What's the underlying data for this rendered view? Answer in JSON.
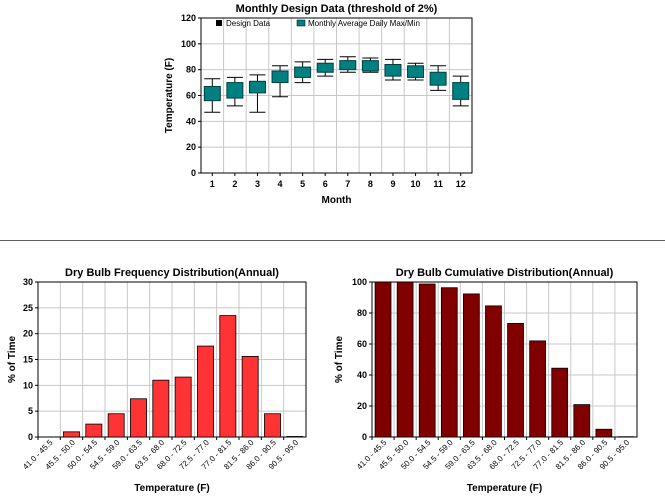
{
  "chart_data": [
    {
      "type": "box",
      "title": "Monthly Design Data (threshold of 2%)",
      "xlabel": "Month",
      "ylabel": "Temperature (F)",
      "ylim": [
        0,
        120
      ],
      "yticks": [
        0,
        20,
        40,
        60,
        80,
        100,
        120
      ],
      "categories": [
        "1",
        "2",
        "3",
        "4",
        "5",
        "6",
        "7",
        "8",
        "9",
        "10",
        "11",
        "12"
      ],
      "legend": [
        {
          "label": "Design Data",
          "color": "#000000"
        },
        {
          "label": "Monthly Average Daily Max/Min",
          "color": "#008080"
        }
      ],
      "design_data": [
        {
          "low": 47,
          "high": 73
        },
        {
          "low": 52,
          "high": 74
        },
        {
          "low": 47,
          "high": 76
        },
        {
          "low": 59,
          "high": 83
        },
        {
          "low": 70,
          "high": 86
        },
        {
          "low": 75,
          "high": 88
        },
        {
          "low": 78,
          "high": 90
        },
        {
          "low": 78,
          "high": 89
        },
        {
          "low": 72,
          "high": 88
        },
        {
          "low": 72,
          "high": 85
        },
        {
          "low": 64,
          "high": 83
        },
        {
          "low": 52,
          "high": 75
        }
      ],
      "daily_max_min": [
        {
          "min": 56,
          "max": 67
        },
        {
          "min": 58,
          "max": 70
        },
        {
          "min": 62,
          "max": 71
        },
        {
          "min": 70,
          "max": 79
        },
        {
          "min": 74,
          "max": 82
        },
        {
          "min": 78,
          "max": 85
        },
        {
          "min": 80,
          "max": 87
        },
        {
          "min": 79,
          "max": 87
        },
        {
          "min": 75,
          "max": 84
        },
        {
          "min": 74,
          "max": 83
        },
        {
          "min": 68,
          "max": 78
        },
        {
          "min": 57,
          "max": 70
        }
      ],
      "color": "#008080"
    },
    {
      "type": "bar",
      "title": "Dry Bulb Frequency Distribution(Annual)",
      "xlabel": "Temperature (F)",
      "ylabel": "% of Time",
      "ylim": [
        0,
        30
      ],
      "yticks": [
        0,
        5,
        10,
        15,
        20,
        25,
        30
      ],
      "categories": [
        "41.0 - 45.5",
        "45.5 - 50.0",
        "50.0 - 54.5",
        "54.5 - 59.0",
        "59.0 - 63.5",
        "63.5 - 68.0",
        "68.0 - 72.5",
        "72.5 - 77.0",
        "77.0 - 81.5",
        "81.5 - 86.0",
        "86.0 - 90.5",
        "90.5 - 95.0"
      ],
      "values": [
        0,
        1.0,
        2.5,
        4.5,
        7.4,
        11.0,
        11.6,
        17.6,
        23.5,
        15.6,
        4.5,
        0.1
      ],
      "color": "#ff3333"
    },
    {
      "type": "bar",
      "title": "Dry Bulb Cumulative Distribution(Annual)",
      "xlabel": "Temperature (F)",
      "ylabel": "% of Time",
      "ylim": [
        0,
        100
      ],
      "yticks": [
        0,
        20,
        40,
        60,
        80,
        100
      ],
      "categories": [
        "41.0 - 45.5",
        "45.5 - 50.0",
        "50.0 - 54.5",
        "54.5 - 59.0",
        "59.0 - 63.5",
        "63.5 - 68.0",
        "68.0 - 72.5",
        "72.5 - 77.0",
        "77.0 - 81.5",
        "81.5 - 86.0",
        "86.0 - 90.5",
        "90.5 - 95.0"
      ],
      "values": [
        100,
        100,
        98.7,
        96.3,
        92.3,
        84.6,
        73.3,
        62.0,
        44.4,
        20.9,
        5.0,
        0.2
      ],
      "color": "#800000"
    }
  ]
}
